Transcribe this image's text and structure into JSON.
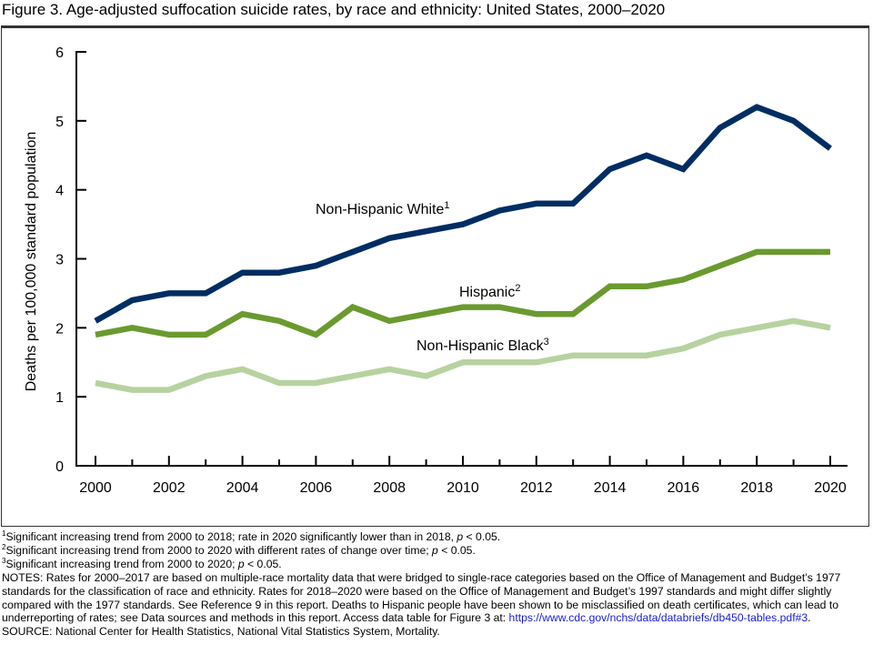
{
  "title": "Figure 3. Age-adjusted suffocation suicide rates, by race and ethnicity: United States, 2000–2020",
  "chart_data": {
    "type": "line",
    "title": "Figure 3. Age-adjusted suffocation suicide rates, by race and ethnicity: United States, 2000–2020",
    "xlabel": "",
    "ylabel": "Deaths per 100,000 standard population",
    "x": [
      2000,
      2001,
      2002,
      2003,
      2004,
      2005,
      2006,
      2007,
      2008,
      2009,
      2010,
      2011,
      2012,
      2013,
      2014,
      2015,
      2016,
      2017,
      2018,
      2019,
      2020
    ],
    "xlim": [
      2000,
      2020
    ],
    "ylim": [
      0,
      6
    ],
    "x_tick_labels": [
      "2000",
      "2002",
      "2004",
      "2006",
      "2008",
      "2010",
      "2012",
      "2014",
      "2016",
      "2018",
      "2020"
    ],
    "y_tick_labels": [
      "0",
      "1",
      "2",
      "3",
      "4",
      "5",
      "6"
    ],
    "grid": false,
    "legend": "inline labels",
    "series": [
      {
        "name": "Non-Hispanic White",
        "footnote": "1",
        "color": "#002d62",
        "values": [
          2.1,
          2.4,
          2.5,
          2.5,
          2.8,
          2.8,
          2.9,
          3.1,
          3.3,
          3.4,
          3.5,
          3.7,
          3.8,
          3.8,
          4.3,
          4.5,
          4.3,
          4.9,
          5.2,
          5.0,
          4.6
        ]
      },
      {
        "name": "Hispanic",
        "footnote": "2",
        "color": "#6a9a2f",
        "values": [
          1.9,
          2.0,
          1.9,
          1.9,
          2.2,
          2.1,
          1.9,
          2.3,
          2.1,
          2.2,
          2.3,
          2.3,
          2.2,
          2.2,
          2.6,
          2.6,
          2.7,
          2.9,
          3.1,
          3.1,
          3.1
        ]
      },
      {
        "name": "Non-Hispanic Black",
        "footnote": "3",
        "color": "#b7d2a0",
        "values": [
          1.2,
          1.1,
          1.1,
          1.3,
          1.4,
          1.2,
          1.2,
          1.3,
          1.4,
          1.3,
          1.5,
          1.5,
          1.5,
          1.6,
          1.6,
          1.6,
          1.7,
          1.9,
          2.0,
          2.1,
          2.0
        ]
      }
    ]
  },
  "footnotes": [
    {
      "mark": "1",
      "text_before_p": "Significant increasing trend from 2000 to 2018; rate in 2020 significantly lower than in 2018, ",
      "p": "p",
      "text_after_p": " < 0.05."
    },
    {
      "mark": "2",
      "text_before_p": "Significant increasing trend from 2000 to 2020 with different rates of change over time; ",
      "p": "p",
      "text_after_p": " < 0.05."
    },
    {
      "mark": "3",
      "text_before_p": "Significant increasing trend from 2000 to 2020; ",
      "p": "p",
      "text_after_p": " < 0.05."
    }
  ],
  "notes": {
    "text": "NOTES: Rates for 2000–2017 are based on multiple-race mortality data that were bridged to single-race categories based on the Office of Management and Budget’s 1977 standards for the classification of race and ethnicity. Rates for 2018–2020 were based on the Office of Management and Budget’s 1997 standards and might differ slightly compared with the 1977 standards. See Reference 9 in this report. Deaths to Hispanic people have been shown to be misclassified on death certificates, which can lead to underreporting of rates; see Data sources and methods in this report. Access data table for Figure 3 at: ",
    "link": "https://www.cdc.gov/nchs/data/databriefs/db450-tables.pdf#3",
    "after_link": "."
  },
  "source": "SOURCE: National Center for Health Statistics, National Vital Statistics System, Mortality."
}
